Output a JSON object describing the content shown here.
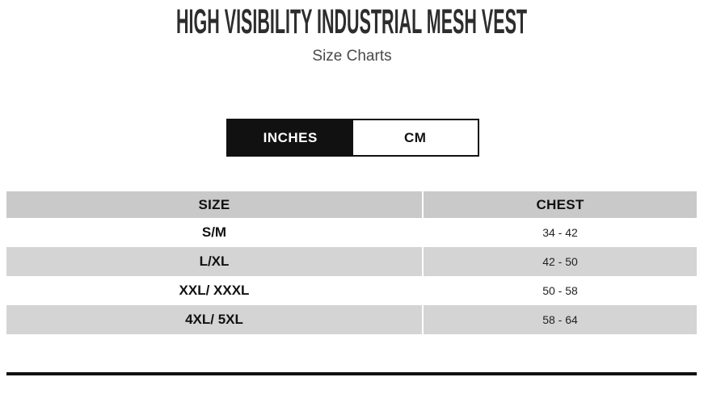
{
  "page": {
    "title": "HIGH VISIBILITY INDUSTRIAL MESH VEST",
    "subtitle": "Size Charts"
  },
  "tabs": [
    {
      "label": "INCHES",
      "active": true
    },
    {
      "label": "CM",
      "active": false
    }
  ],
  "size_chart": {
    "unit_shown": "INCHES",
    "columns": [
      "SIZE",
      "CHEST"
    ],
    "rows": [
      {
        "size": "S/M",
        "chest": "34 - 42"
      },
      {
        "size": "L/XL",
        "chest": "42 - 50"
      },
      {
        "size": "XXL/ XXXL",
        "chest": "50 - 58"
      },
      {
        "size": "4XL/ 5XL",
        "chest": "58 - 64"
      }
    ]
  },
  "decor": {
    "cutoff_glyphs": "˟ ˟"
  },
  "colors": {
    "header_row_bg": "#c9c9c9",
    "alt_row_bg": "#d4d4d4",
    "tab_active_bg": "#111111",
    "tab_active_text": "#ffffff",
    "tab_inactive_bg": "#ffffff",
    "title_text": "#2d2d2d",
    "subtitle_text": "#4a4a4a",
    "rule_color": "#111111"
  }
}
